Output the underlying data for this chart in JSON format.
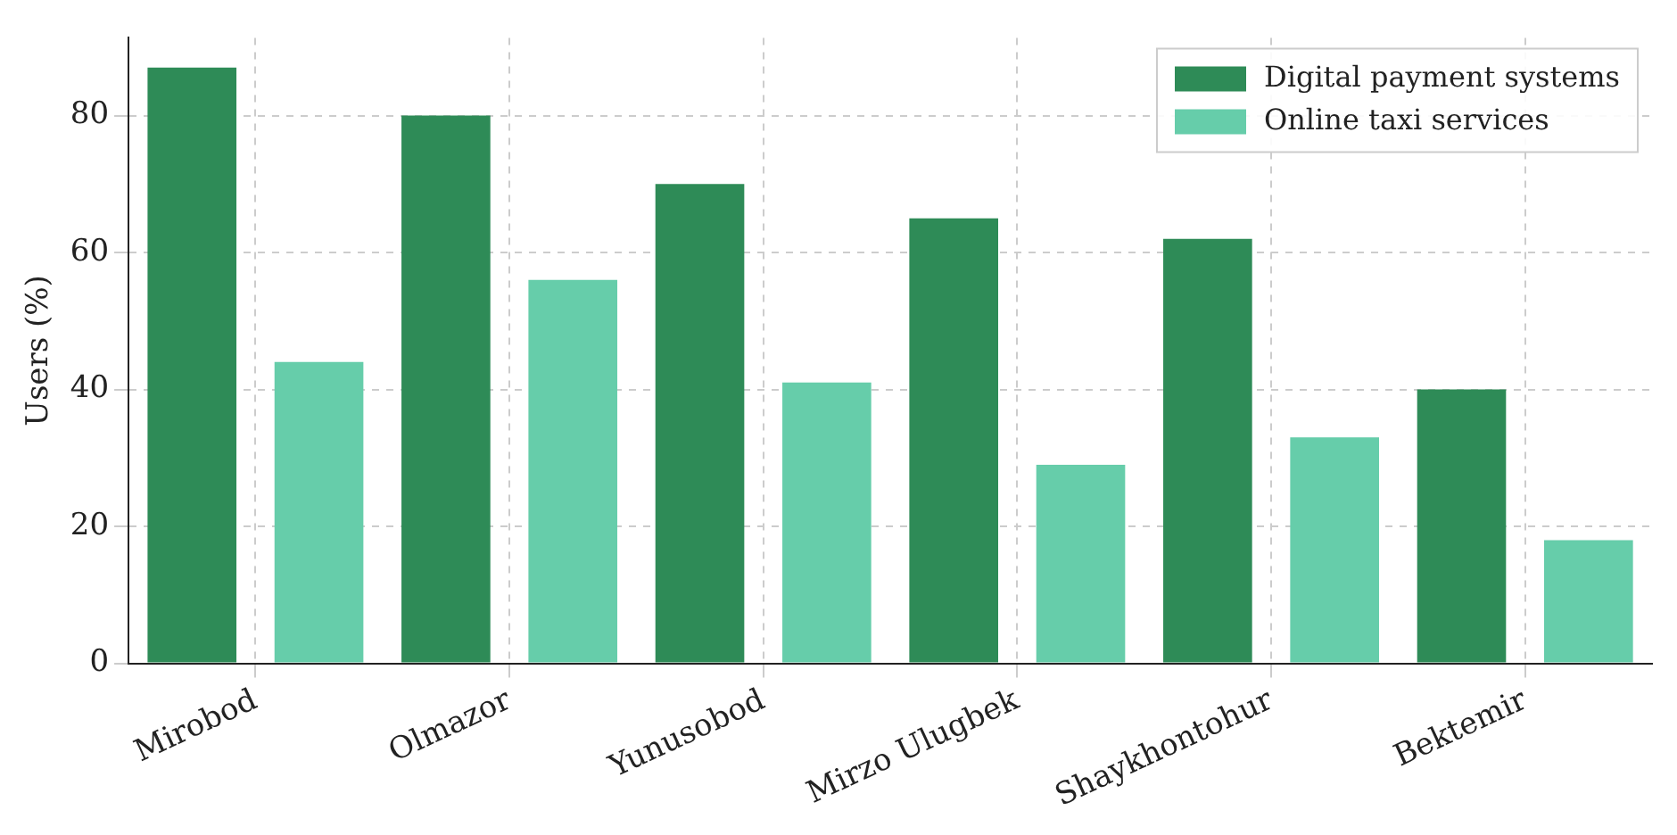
{
  "chart_data": {
    "type": "bar",
    "ylabel": "Users (%)",
    "categories": [
      "Mirobod",
      "Olmazor",
      "Yunusobod",
      "Mirzo Ulugbek",
      "Shaykhontohur",
      "Bektemir"
    ],
    "series": [
      {
        "name": "Digital payment systems",
        "color": "#2e8b57",
        "values": [
          87,
          80,
          70,
          65,
          62,
          40
        ]
      },
      {
        "name": "Online taxi services",
        "color": "#66cdaa",
        "values": [
          44,
          56,
          41,
          29,
          33,
          18
        ]
      }
    ],
    "ylim": [
      0,
      91.35
    ],
    "yticks": [
      0,
      20,
      40,
      60,
      80
    ],
    "grid": true,
    "legend": "top right"
  }
}
